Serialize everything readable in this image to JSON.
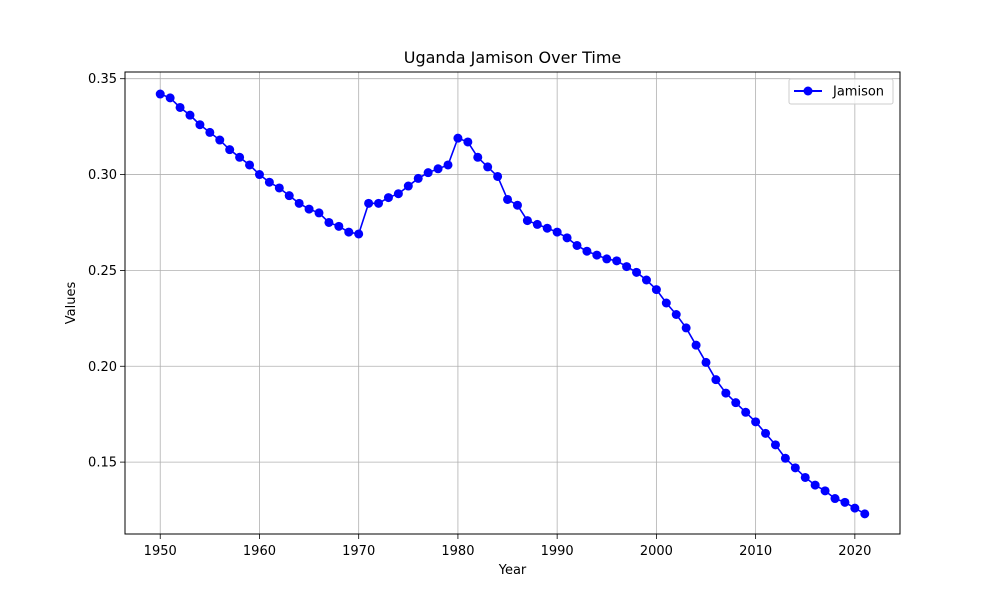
{
  "chart_data": {
    "type": "line",
    "title": "Uganda Jamison Over Time",
    "xlabel": "Year",
    "ylabel": "Values",
    "xlim": [
      1946.45,
      2024.55
    ],
    "ylim": [
      0.1125,
      0.3535
    ],
    "x_ticks": [
      1950,
      1960,
      1970,
      1980,
      1990,
      2000,
      2010,
      2020
    ],
    "y_ticks": [
      0.15,
      0.2,
      0.25,
      0.3,
      0.35
    ],
    "y_tick_labels": [
      "0.15",
      "0.20",
      "0.25",
      "0.30",
      "0.35"
    ],
    "grid": true,
    "legend_position": "upper right",
    "series_color": "#0000ff",
    "series": [
      {
        "name": "Jamison",
        "x": [
          1950,
          1951,
          1952,
          1953,
          1954,
          1955,
          1956,
          1957,
          1958,
          1959,
          1960,
          1961,
          1962,
          1963,
          1964,
          1965,
          1966,
          1967,
          1968,
          1969,
          1970,
          1971,
          1972,
          1973,
          1974,
          1975,
          1976,
          1977,
          1978,
          1979,
          1980,
          1981,
          1982,
          1983,
          1984,
          1985,
          1986,
          1987,
          1988,
          1989,
          1990,
          1991,
          1992,
          1993,
          1994,
          1995,
          1996,
          1997,
          1998,
          1999,
          2000,
          2001,
          2002,
          2003,
          2004,
          2005,
          2006,
          2007,
          2008,
          2009,
          2010,
          2011,
          2012,
          2013,
          2014,
          2015,
          2016,
          2017,
          2018,
          2019,
          2020,
          2021
        ],
        "values": [
          0.342,
          0.34,
          0.335,
          0.331,
          0.326,
          0.322,
          0.318,
          0.313,
          0.309,
          0.305,
          0.3,
          0.296,
          0.293,
          0.289,
          0.285,
          0.282,
          0.28,
          0.275,
          0.273,
          0.27,
          0.269,
          0.285,
          0.285,
          0.288,
          0.29,
          0.294,
          0.298,
          0.301,
          0.303,
          0.305,
          0.319,
          0.317,
          0.309,
          0.304,
          0.299,
          0.287,
          0.284,
          0.276,
          0.274,
          0.272,
          0.27,
          0.267,
          0.263,
          0.26,
          0.258,
          0.256,
          0.255,
          0.252,
          0.249,
          0.245,
          0.24,
          0.233,
          0.227,
          0.22,
          0.211,
          0.202,
          0.193,
          0.186,
          0.181,
          0.176,
          0.171,
          0.165,
          0.159,
          0.152,
          0.147,
          0.142,
          0.138,
          0.135,
          0.131,
          0.129,
          0.126,
          0.123
        ]
      }
    ]
  }
}
